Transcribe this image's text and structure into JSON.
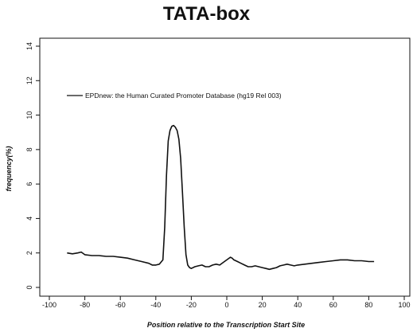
{
  "chart_data": {
    "type": "line",
    "title": "TATA-box",
    "xlabel": "Position relative to the Transcription Start Site",
    "ylabel": "frequency(%)",
    "xlim": [
      -100,
      100
    ],
    "ylim": [
      0,
      14
    ],
    "xticks": [
      -100,
      -80,
      -60,
      -40,
      -20,
      0,
      20,
      40,
      60,
      80,
      100
    ],
    "yticks": [
      0,
      2,
      4,
      6,
      8,
      10,
      12,
      14
    ],
    "grid": false,
    "legend_position": "top-left",
    "series": [
      {
        "name": "EPDnew: the Human Curated Promoter Database (hg19 Rel 003)",
        "color": "#111111",
        "x": [
          -90,
          -87,
          -84,
          -82,
          -80,
          -76,
          -72,
          -68,
          -64,
          -60,
          -56,
          -52,
          -48,
          -44,
          -42,
          -40,
          -38,
          -36,
          -35,
          -34,
          -33,
          -32,
          -31,
          -30,
          -29,
          -28,
          -27,
          -26,
          -25,
          -24,
          -23,
          -22,
          -21,
          -20,
          -18,
          -16,
          -14,
          -12,
          -10,
          -8,
          -6,
          -4,
          -2,
          0,
          2,
          3,
          4,
          6,
          8,
          10,
          12,
          14,
          16,
          18,
          20,
          22,
          24,
          26,
          28,
          30,
          32,
          34,
          36,
          38,
          40,
          44,
          48,
          52,
          56,
          60,
          64,
          68,
          72,
          76,
          80,
          83
        ],
        "y": [
          2.0,
          1.95,
          2.0,
          2.05,
          1.9,
          1.85,
          1.85,
          1.8,
          1.8,
          1.75,
          1.7,
          1.6,
          1.5,
          1.4,
          1.3,
          1.3,
          1.35,
          1.6,
          3.5,
          6.5,
          8.5,
          9.1,
          9.35,
          9.4,
          9.3,
          9.1,
          8.6,
          7.5,
          5.5,
          3.5,
          1.9,
          1.3,
          1.15,
          1.1,
          1.2,
          1.25,
          1.3,
          1.2,
          1.2,
          1.3,
          1.35,
          1.3,
          1.45,
          1.6,
          1.75,
          1.7,
          1.6,
          1.5,
          1.4,
          1.3,
          1.2,
          1.2,
          1.25,
          1.2,
          1.15,
          1.1,
          1.05,
          1.1,
          1.15,
          1.25,
          1.3,
          1.35,
          1.3,
          1.25,
          1.3,
          1.35,
          1.4,
          1.45,
          1.5,
          1.55,
          1.6,
          1.6,
          1.55,
          1.55,
          1.5,
          1.5
        ]
      }
    ]
  }
}
